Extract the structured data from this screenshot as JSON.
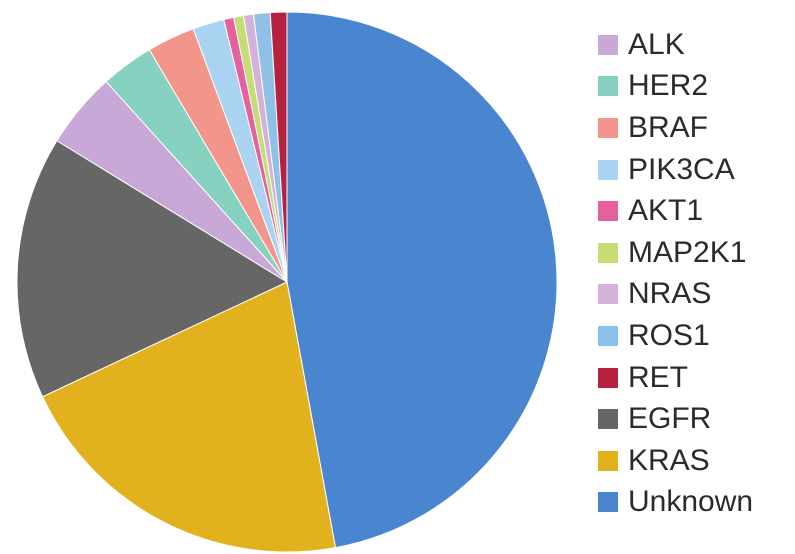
{
  "chart_data": {
    "type": "pie",
    "title": "",
    "legend_position": "right",
    "slices": [
      {
        "label": "Unknown",
        "value": 47.6,
        "color": "#4a86cf"
      },
      {
        "label": "KRAS",
        "value": 21.1,
        "color": "#e2b21e"
      },
      {
        "label": "EGFR",
        "value": 15.9,
        "color": "#666666"
      },
      {
        "label": "ALK",
        "value": 4.6,
        "color": "#c8a8d6"
      },
      {
        "label": "HER2",
        "value": 3.2,
        "color": "#86d1bf"
      },
      {
        "label": "BRAF",
        "value": 2.9,
        "color": "#f2958b"
      },
      {
        "label": "PIK3CA",
        "value": 1.9,
        "color": "#a9d3f0"
      },
      {
        "label": "AKT1",
        "value": 0.6,
        "color": "#e6609e"
      },
      {
        "label": "MAP2K1",
        "value": 0.6,
        "color": "#c5dd74"
      },
      {
        "label": "NRAS",
        "value": 0.6,
        "color": "#d3b1d8"
      },
      {
        "label": "ROS1",
        "value": 1.0,
        "color": "#8fc1e8"
      },
      {
        "label": "RET",
        "value": 1.0,
        "color": "#b5213f"
      }
    ],
    "legend_order": [
      "ALK",
      "HER2",
      "BRAF",
      "PIK3CA",
      "AKT1",
      "MAP2K1",
      "NRAS",
      "ROS1",
      "RET",
      "EGFR",
      "KRAS",
      "Unknown"
    ]
  }
}
